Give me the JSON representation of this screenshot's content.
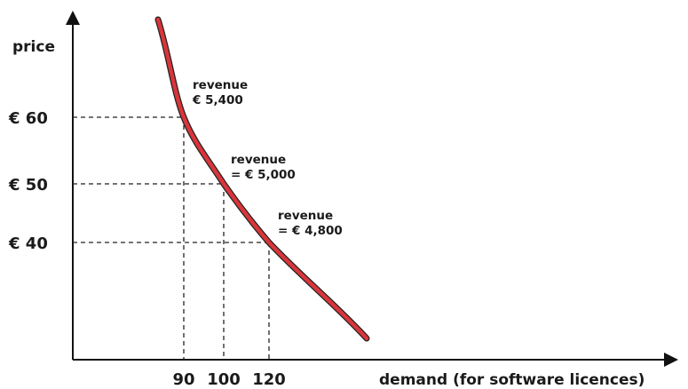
{
  "chart_data": {
    "type": "line",
    "title": "",
    "xlabel": "demand (for software licences)",
    "ylabel": "price",
    "x_ticks": [
      "90",
      "100",
      "120"
    ],
    "y_ticks": [
      "€ 60",
      "€ 50",
      "€ 40"
    ],
    "series": [
      {
        "points": [
          {
            "x": 90,
            "y": 60
          },
          {
            "x": 100,
            "y": 50
          },
          {
            "x": 120,
            "y": 40
          }
        ],
        "color": "#d9353a"
      }
    ],
    "annotations": [
      {
        "line1": "revenue",
        "line2": "€ 5,400",
        "x": 90,
        "y": 60
      },
      {
        "line1": "revenue",
        "line2": "= € 5,000",
        "x": 100,
        "y": 50
      },
      {
        "line1": "revenue",
        "line2": "= € 4,800",
        "x": 120,
        "y": 40
      }
    ],
    "grid": false,
    "guide_lines": "dashed"
  }
}
